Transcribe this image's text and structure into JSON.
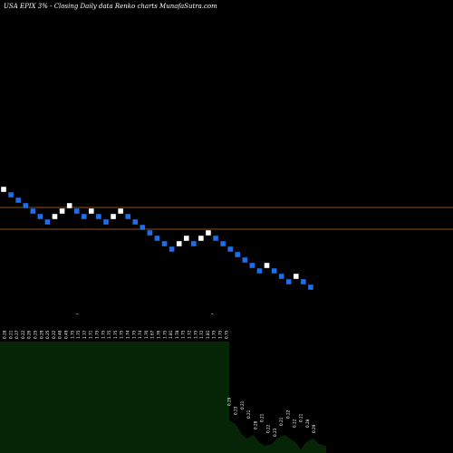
{
  "header": {
    "title": "USA EPIX  3% -  Closing Daily data  Renko  charts MunafaSutra.com"
  },
  "chart_data": {
    "type": "renko",
    "direction": [
      "up",
      "down",
      "down",
      "down",
      "down",
      "down",
      "down",
      "up",
      "up",
      "up",
      "down",
      "down",
      "up",
      "down",
      "down",
      "up",
      "up",
      "down",
      "down",
      "down",
      "down",
      "down",
      "down",
      "down",
      "up",
      "up",
      "down",
      "up",
      "up",
      "down",
      "down",
      "down",
      "down",
      "down",
      "down",
      "down",
      "up",
      "down",
      "down",
      "down",
      "up",
      "down",
      "down"
    ],
    "up_color": "#ffffff",
    "down_color": "#1e6ee8",
    "reference_lines": [
      {
        "color": "#c06a1e"
      },
      {
        "color": "#c06a1e"
      }
    ],
    "volume": {
      "bar_color": "#062406",
      "labels_left": [
        "0.28",
        "0.21",
        "0.27",
        "0.22",
        "0.26",
        "0.25",
        "0.29",
        "0.25",
        "0.22",
        "0.48",
        "0.49",
        "1.75",
        "1.75",
        "1.77",
        "1.71",
        "1.75",
        "1.75",
        "1.75",
        "1.75",
        "1.75",
        "1.74",
        "1.75",
        "1.74",
        "1.76",
        "1.67",
        "1.76",
        "1.75",
        "1.81",
        "1.78",
        "1.75",
        "1.72",
        "1.75",
        "1.72",
        "1.81",
        "1.75",
        "1.75",
        "0.75"
      ],
      "marker_glyph": "⌁",
      "labels_right": [
        "0.29",
        "0.23",
        "0.21",
        "0.21",
        "0.28",
        "0.21",
        "0.22",
        "0.23",
        "0.21",
        "0.22",
        "0.22",
        "0.21",
        "0.28",
        "0.29"
      ]
    }
  }
}
